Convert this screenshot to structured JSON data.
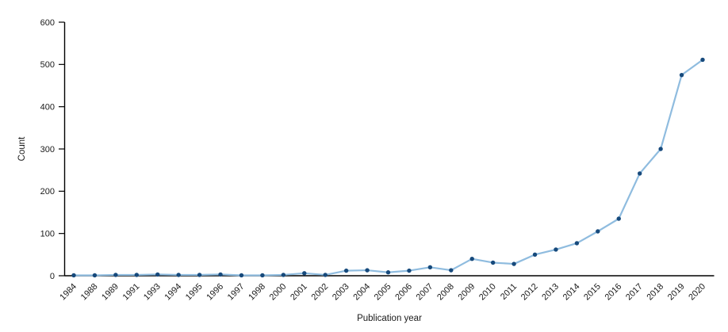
{
  "chart_data": {
    "type": "line",
    "title": "",
    "xlabel": "Publication year",
    "ylabel": "Count",
    "categories": [
      "1984",
      "1988",
      "1989",
      "1991",
      "1993",
      "1994",
      "1995",
      "1996",
      "1997",
      "1998",
      "2000",
      "2001",
      "2002",
      "2003",
      "2004",
      "2005",
      "2006",
      "2007",
      "2008",
      "2009",
      "2010",
      "2011",
      "2012",
      "2013",
      "2014",
      "2015",
      "2016",
      "2017",
      "2018",
      "2019",
      "2020"
    ],
    "values": [
      1,
      1,
      2,
      2,
      3,
      2,
      2,
      3,
      1,
      1,
      2,
      6,
      2,
      12,
      13,
      8,
      12,
      20,
      13,
      40,
      31,
      28,
      50,
      62,
      77,
      105,
      135,
      242,
      300,
      475,
      511
    ],
    "ylim": [
      0,
      600
    ],
    "yticks": [
      0,
      100,
      200,
      300,
      400,
      500,
      600
    ],
    "grid": false,
    "legend_position": "none",
    "line_color": "#8fbcdf",
    "marker_color": "#174a7c",
    "axis_color": "#000000",
    "tick_label_color": "#1a1a1a"
  }
}
